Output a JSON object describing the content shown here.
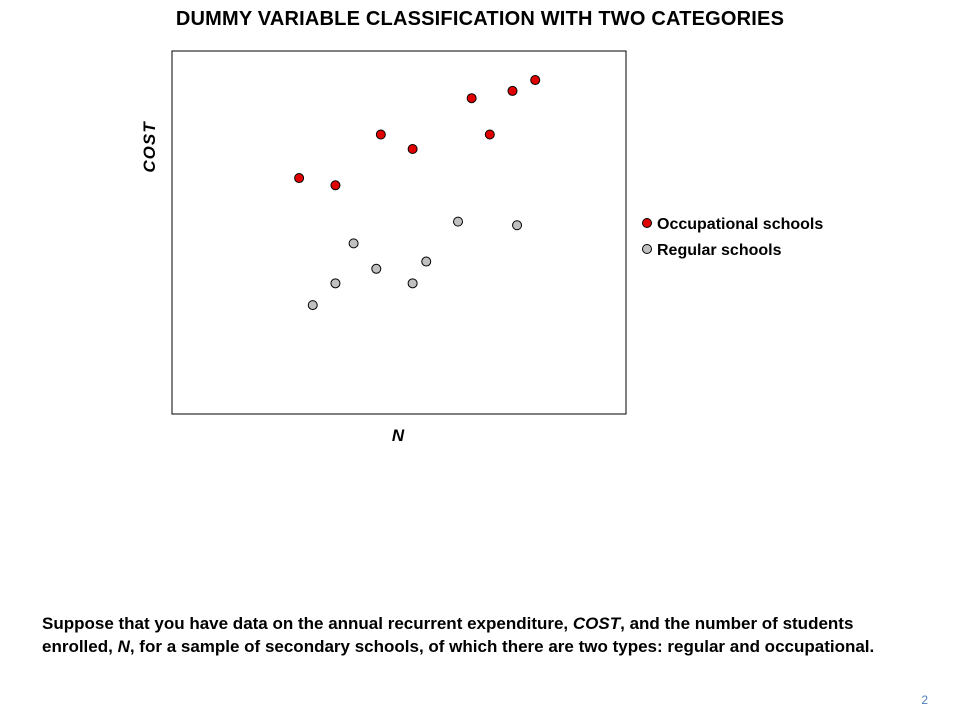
{
  "slide": {
    "title": "DUMMY VARIABLE CLASSIFICATION WITH TWO CATEGORIES",
    "caption_parts": [
      {
        "text": "Suppose that you have data on the annual recurrent expenditure, ",
        "italic": false
      },
      {
        "text": "COST",
        "italic": true
      },
      {
        "text": ", and the number of students enrolled, ",
        "italic": false
      },
      {
        "text": "N",
        "italic": true
      },
      {
        "text": ", for a sample of secondary schools, of which there are two types: regular and occupational.",
        "italic": false
      }
    ],
    "slide_number": "2"
  },
  "chart_data": {
    "type": "scatter",
    "title": "",
    "xlabel": "N",
    "ylabel": "COST",
    "xlim": [
      0,
      100
    ],
    "ylim": [
      0,
      100
    ],
    "grid": false,
    "ticks_shown": false,
    "legend_position": "right",
    "series": [
      {
        "name": "Occupational schools",
        "color": "#e00000",
        "points": [
          [
            28,
            65
          ],
          [
            36,
            63
          ],
          [
            46,
            77
          ],
          [
            53,
            73
          ],
          [
            66,
            87
          ],
          [
            70,
            77
          ],
          [
            75,
            89
          ],
          [
            80,
            92
          ]
        ]
      },
      {
        "name": "Regular schools",
        "color": "#c0c0c0",
        "points": [
          [
            31,
            30
          ],
          [
            36,
            36
          ],
          [
            40,
            47
          ],
          [
            45,
            40
          ],
          [
            53,
            36
          ],
          [
            56,
            42
          ],
          [
            63,
            53
          ],
          [
            76,
            52
          ]
        ]
      }
    ]
  }
}
